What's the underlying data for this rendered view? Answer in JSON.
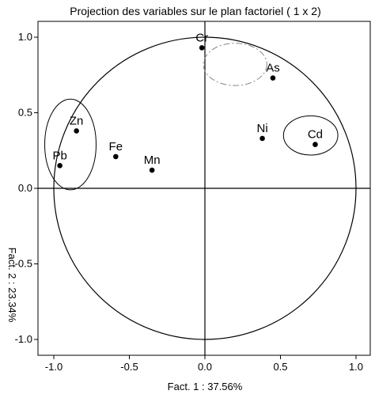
{
  "chart_data": {
    "type": "scatter",
    "title": "Projection des variables sur le plan factoriel ( 1 x 2)",
    "xlabel": "Fact. 1 : 37.56%",
    "ylabel": "Fact. 2 : 23.34%",
    "xlim": [
      -1.1,
      1.1
    ],
    "ylim": [
      -1.1,
      1.1
    ],
    "x_ticks": [
      "-1.0",
      "-0.5",
      "0.0",
      "0.5",
      "1.0"
    ],
    "y_ticks": [
      "1.0",
      "0.5",
      "0.0",
      "-0.5",
      "-1.0"
    ],
    "x_tick_values": [
      -1.0,
      -0.5,
      0.0,
      0.5,
      1.0
    ],
    "y_tick_values": [
      1.0,
      0.5,
      0.0,
      -0.5,
      -1.0
    ],
    "points": [
      {
        "label": "Cr",
        "x": -0.02,
        "y": 0.93
      },
      {
        "label": "As",
        "x": 0.45,
        "y": 0.73
      },
      {
        "label": "Zn",
        "x": -0.85,
        "y": 0.38
      },
      {
        "label": "Ni",
        "x": 0.38,
        "y": 0.33
      },
      {
        "label": "Cd",
        "x": 0.73,
        "y": 0.29
      },
      {
        "label": "Fe",
        "x": -0.59,
        "y": 0.21
      },
      {
        "label": "Pb",
        "x": -0.96,
        "y": 0.15
      },
      {
        "label": "Mn",
        "x": -0.35,
        "y": 0.12
      }
    ],
    "unit_circle": true,
    "group_ellipses": [
      {
        "members": [
          "Zn",
          "Pb"
        ],
        "cx": -0.89,
        "cy": 0.29,
        "rx": 0.17,
        "ry": 0.3,
        "style": "solid"
      },
      {
        "members": [
          "Cd"
        ],
        "cx": 0.7,
        "cy": 0.35,
        "rx": 0.18,
        "ry": 0.13,
        "style": "solid"
      },
      {
        "members": [
          "Cr",
          "As"
        ],
        "cx": 0.2,
        "cy": 0.82,
        "rx": 0.21,
        "ry": 0.14,
        "style": "dashdot"
      }
    ],
    "grid": false,
    "legend": "none"
  }
}
